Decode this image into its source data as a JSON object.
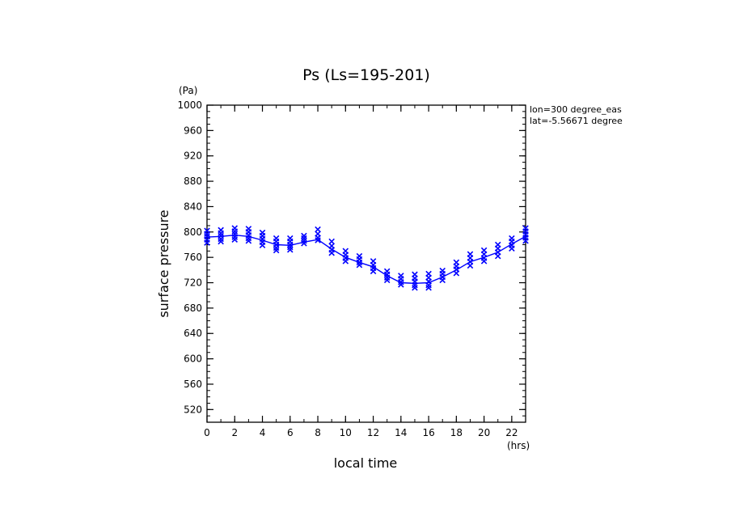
{
  "chart_data": {
    "type": "scatter",
    "title": "Ps (Ls=195-201)",
    "xlabel": "local time",
    "ylabel": "surface pressure",
    "x_unit": "(hrs)",
    "y_unit": "(Pa)",
    "annotations": [
      "lon=300 degree_eas",
      "lat=-5.56671 degree"
    ],
    "xlim": [
      0,
      23
    ],
    "ylim": [
      500,
      1000
    ],
    "x_ticks": [
      0,
      2,
      4,
      6,
      8,
      10,
      12,
      14,
      16,
      18,
      20,
      22
    ],
    "y_ticks": [
      520,
      560,
      600,
      640,
      680,
      720,
      760,
      800,
      840,
      880,
      920,
      960,
      1000
    ],
    "grid": false,
    "colors": {
      "series": "#0000ff",
      "axes": "#000000"
    },
    "series": [
      {
        "kind": "scatter",
        "marker": "x",
        "points": [
          [
            0,
            802
          ],
          [
            0,
            797
          ],
          [
            0,
            793
          ],
          [
            0,
            788
          ],
          [
            0,
            783
          ],
          [
            1,
            803
          ],
          [
            1,
            798
          ],
          [
            1,
            794
          ],
          [
            1,
            789
          ],
          [
            1,
            785
          ],
          [
            2,
            806
          ],
          [
            2,
            801
          ],
          [
            2,
            797
          ],
          [
            2,
            792
          ],
          [
            2,
            788
          ],
          [
            3,
            805
          ],
          [
            3,
            800
          ],
          [
            3,
            795
          ],
          [
            3,
            790
          ],
          [
            3,
            786
          ],
          [
            4,
            799
          ],
          [
            4,
            794
          ],
          [
            4,
            789
          ],
          [
            4,
            784
          ],
          [
            4,
            779
          ],
          [
            5,
            790
          ],
          [
            5,
            785
          ],
          [
            5,
            780
          ],
          [
            5,
            775
          ],
          [
            5,
            771
          ],
          [
            6,
            790
          ],
          [
            6,
            785
          ],
          [
            6,
            780
          ],
          [
            6,
            776
          ],
          [
            6,
            772
          ],
          [
            7,
            794
          ],
          [
            7,
            790
          ],
          [
            7,
            786
          ],
          [
            7,
            782
          ],
          [
            8,
            804
          ],
          [
            8,
            797
          ],
          [
            8,
            791
          ],
          [
            8,
            787
          ],
          [
            9,
            785
          ],
          [
            9,
            778
          ],
          [
            9,
            772
          ],
          [
            9,
            767
          ],
          [
            10,
            770
          ],
          [
            10,
            764
          ],
          [
            10,
            759
          ],
          [
            10,
            754
          ],
          [
            11,
            762
          ],
          [
            11,
            757
          ],
          [
            11,
            752
          ],
          [
            11,
            748
          ],
          [
            12,
            754
          ],
          [
            12,
            748
          ],
          [
            12,
            743
          ],
          [
            12,
            738
          ],
          [
            13,
            738
          ],
          [
            13,
            733
          ],
          [
            13,
            728
          ],
          [
            13,
            724
          ],
          [
            14,
            731
          ],
          [
            14,
            726
          ],
          [
            14,
            721
          ],
          [
            14,
            717
          ],
          [
            15,
            733
          ],
          [
            15,
            727
          ],
          [
            15,
            722
          ],
          [
            15,
            716
          ],
          [
            15,
            712
          ],
          [
            16,
            734
          ],
          [
            16,
            728
          ],
          [
            16,
            722
          ],
          [
            16,
            716
          ],
          [
            16,
            712
          ],
          [
            17,
            739
          ],
          [
            17,
            734
          ],
          [
            17,
            729
          ],
          [
            17,
            724
          ],
          [
            18,
            752
          ],
          [
            18,
            746
          ],
          [
            18,
            741
          ],
          [
            18,
            735
          ],
          [
            19,
            765
          ],
          [
            19,
            759
          ],
          [
            19,
            753
          ],
          [
            19,
            747
          ],
          [
            20,
            771
          ],
          [
            20,
            765
          ],
          [
            20,
            759
          ],
          [
            20,
            754
          ],
          [
            21,
            780
          ],
          [
            21,
            774
          ],
          [
            21,
            768
          ],
          [
            21,
            762
          ],
          [
            22,
            790
          ],
          [
            22,
            785
          ],
          [
            22,
            779
          ],
          [
            22,
            774
          ],
          [
            23,
            806
          ],
          [
            23,
            801
          ],
          [
            23,
            796
          ],
          [
            23,
            791
          ],
          [
            23,
            786
          ]
        ]
      },
      {
        "kind": "line",
        "x": [
          0,
          1,
          2,
          3,
          4,
          5,
          6,
          7,
          8,
          9,
          10,
          11,
          12,
          13,
          14,
          15,
          16,
          17,
          18,
          19,
          20,
          21,
          22,
          23
        ],
        "values": [
          792,
          793,
          795,
          793,
          787,
          780,
          779,
          784,
          788,
          773,
          760,
          752,
          745,
          731,
          720,
          719,
          720,
          729,
          740,
          753,
          760,
          768,
          781,
          793
        ]
      }
    ]
  }
}
